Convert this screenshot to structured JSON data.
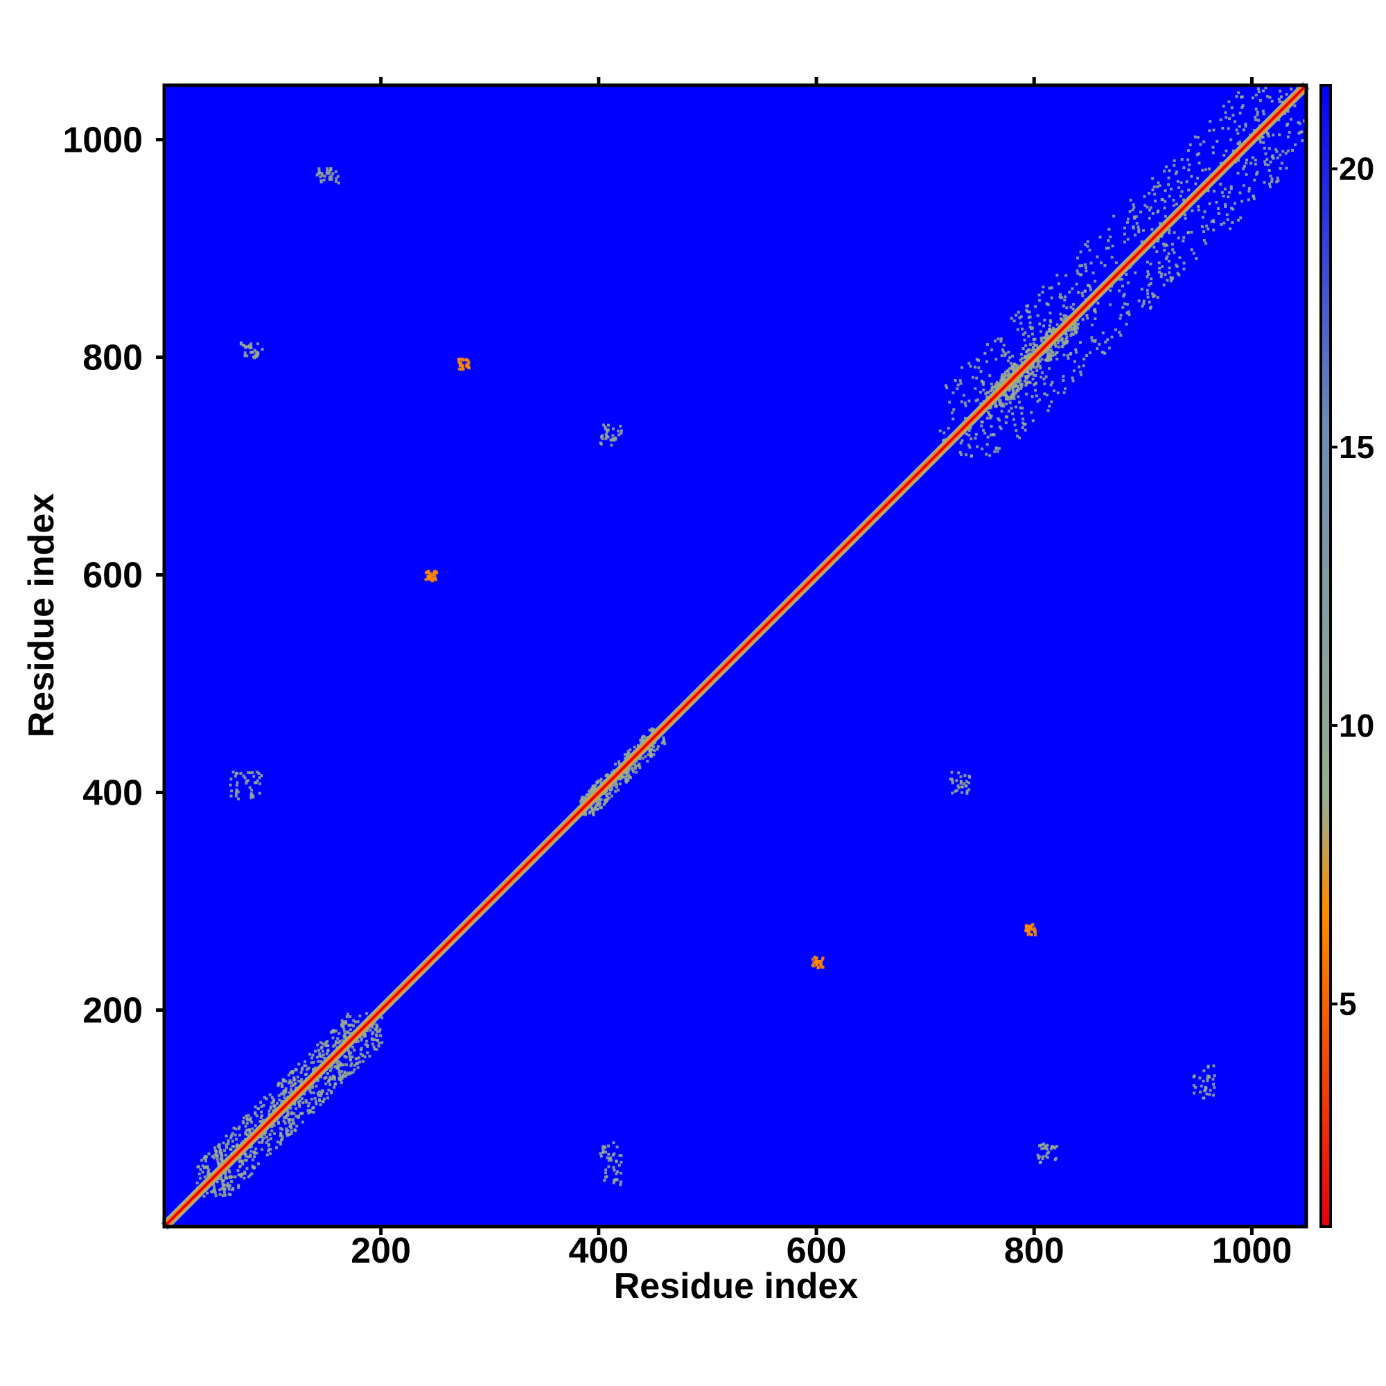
{
  "chart_data": {
    "type": "heatmap",
    "xlabel": "Residue index",
    "ylabel": "Residue index",
    "xlim": [
      1,
      1050
    ],
    "ylim": [
      1,
      1050
    ],
    "x_ticks": [
      200,
      400,
      600,
      800,
      1000
    ],
    "y_ticks": [
      200,
      400,
      600,
      800,
      1000
    ],
    "x_tick_labels": [
      "200",
      "400",
      "600",
      "800",
      "1000"
    ],
    "y_tick_labels": [
      "200",
      "400",
      "600",
      "800",
      "1000"
    ],
    "colorbar": {
      "range": [
        1,
        21.5
      ],
      "ticks": [
        5,
        10,
        15,
        20
      ],
      "tick_labels": [
        "5",
        "10",
        "15",
        "20"
      ],
      "colors": [
        "#e8000b",
        "#ff8c00",
        "#9aae8e",
        "#6f8cb5",
        "#0000ff"
      ]
    },
    "background_color": "#0000ff",
    "diagonal_color": "#e8000b",
    "contact_color": "#9aae8e",
    "diagonal": {
      "start": 1,
      "end": 1050
    },
    "contact_regions": [
      {
        "x": [
          30,
          200
        ],
        "y": [
          30,
          200
        ],
        "level": 11
      },
      {
        "x": [
          380,
          460
        ],
        "y": [
          380,
          460
        ],
        "level": 11
      },
      {
        "x": [
          710,
          1050
        ],
        "y": [
          710,
          1050
        ],
        "level": 11
      },
      {
        "x": [
          755,
          840
        ],
        "y": [
          755,
          840
        ],
        "level": 10
      },
      {
        "x": [
          60,
          90
        ],
        "y": [
          395,
          420
        ],
        "level": 11
      },
      {
        "x": [
          70,
          90
        ],
        "y": [
          800,
          815
        ],
        "level": 11
      },
      {
        "x": [
          140,
          160
        ],
        "y": [
          960,
          975
        ],
        "level": 11
      },
      {
        "x": [
          400,
          420
        ],
        "y": [
          720,
          740
        ],
        "level": 11
      },
      {
        "x": [
          400,
          420
        ],
        "y": [
          40,
          80
        ],
        "level": 11
      },
      {
        "x": [
          720,
          740
        ],
        "y": [
          400,
          420
        ],
        "level": 11
      },
      {
        "x": [
          800,
          820
        ],
        "y": [
          60,
          80
        ],
        "level": 11
      },
      {
        "x": [
          945,
          965
        ],
        "y": [
          120,
          150
        ],
        "level": 11
      },
      {
        "x": [
          240,
          250
        ],
        "y": [
          595,
          605
        ],
        "level": 7
      },
      {
        "x": [
          595,
          605
        ],
        "y": [
          240,
          250
        ],
        "level": 7
      },
      {
        "x": [
          270,
          280
        ],
        "y": [
          790,
          800
        ],
        "level": 7
      },
      {
        "x": [
          790,
          800
        ],
        "y": [
          270,
          280
        ],
        "level": 7
      }
    ]
  }
}
